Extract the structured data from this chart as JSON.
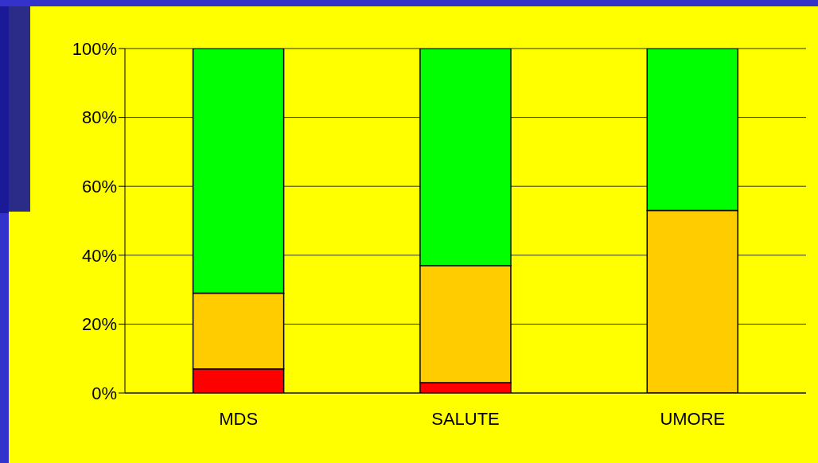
{
  "chart_data": {
    "type": "bar",
    "stacked": true,
    "categories": [
      "MDS",
      "SALUTE",
      "UMORE"
    ],
    "series": [
      {
        "color": "#ff0000",
        "values": [
          7,
          3,
          null
        ]
      },
      {
        "color": "#ffcc00",
        "values": [
          22,
          34,
          53
        ]
      },
      {
        "color": "#00ff00",
        "values": [
          71,
          63,
          47
        ]
      }
    ],
    "ylim": [
      0,
      100
    ],
    "yticks": [
      {
        "value": 0,
        "label": "0%"
      },
      {
        "value": 20,
        "label": "20%"
      },
      {
        "value": 40,
        "label": "40%"
      },
      {
        "value": 60,
        "label": "60%"
      },
      {
        "value": 80,
        "label": "80%"
      },
      {
        "value": 100,
        "label": "100%"
      }
    ],
    "grid": "y",
    "legend": false
  }
}
